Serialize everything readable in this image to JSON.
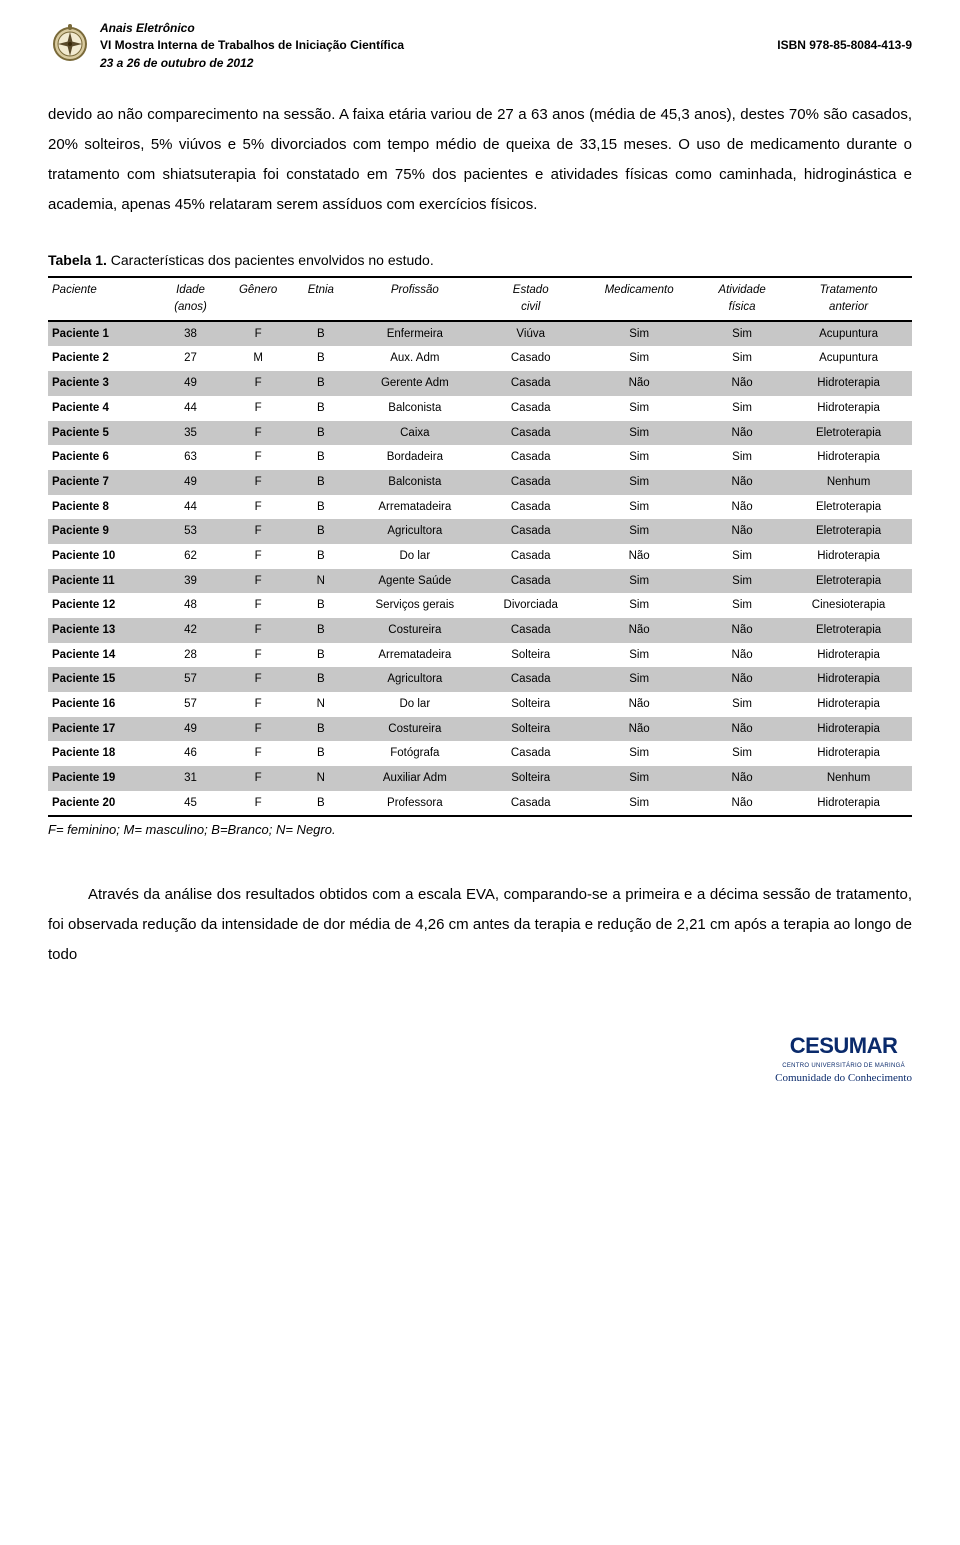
{
  "header": {
    "title_line1": "Anais Eletrônico",
    "title_line2": "VI Mostra Interna de Trabalhos de Iniciação Científica",
    "date_line": "23 a 26 de outubro de 2012",
    "isbn": "ISBN 978-85-8084-413-9"
  },
  "body": {
    "paragraph1": "devido ao não comparecimento na sessão. A faixa etária variou de 27 a 63 anos (média de 45,3 anos), destes 70% são casados, 20% solteiros, 5% viúvos e 5% divorciados com tempo médio de queixa de 33,15 meses. O uso de medicamento durante o tratamento com shiatsuterapia foi constatado em 75% dos pacientes e atividades físicas como caminhada, hidroginástica e academia, apenas 45% relataram serem assíduos com exercícios físicos.",
    "table_label": "Tabela 1.",
    "table_caption": " Características dos pacientes envolvidos no estudo.",
    "table_legend": "F= feminino; M= masculino; B=Branco; N= Negro.",
    "paragraph2": "Através da análise dos resultados obtidos com a escala EVA, comparando-se a primeira e a décima sessão de tratamento, foi observada redução da intensidade de dor média de 4,26 cm antes da terapia e redução de 2,21 cm após a terapia ao longo de todo"
  },
  "table": {
    "type": "table",
    "row_odd_bg": "#c7c7c7",
    "row_even_bg": "#ffffff",
    "border_color": "#000000",
    "header_font_style": "italic",
    "columns": [
      {
        "key": "paciente",
        "label": "Paciente",
        "align": "left"
      },
      {
        "key": "idade",
        "label": "Idade (anos)",
        "align": "center"
      },
      {
        "key": "genero",
        "label": "Gênero",
        "align": "center"
      },
      {
        "key": "etnia",
        "label": "Etnia",
        "align": "center"
      },
      {
        "key": "profissao",
        "label": "Profissão",
        "align": "center"
      },
      {
        "key": "estado",
        "label": "Estado civil",
        "align": "center"
      },
      {
        "key": "medicamento",
        "label": "Medicamento",
        "align": "center"
      },
      {
        "key": "atividade",
        "label": "Atividade física",
        "align": "center"
      },
      {
        "key": "tratamento",
        "label": "Tratamento anterior",
        "align": "center"
      }
    ],
    "rows": [
      {
        "paciente": "Paciente 1",
        "idade": "38",
        "genero": "F",
        "etnia": "B",
        "profissao": "Enfermeira",
        "estado": "Viúva",
        "medicamento": "Sim",
        "atividade": "Sim",
        "tratamento": "Acupuntura"
      },
      {
        "paciente": "Paciente 2",
        "idade": "27",
        "genero": "M",
        "etnia": "B",
        "profissao": "Aux. Adm",
        "estado": "Casado",
        "medicamento": "Sim",
        "atividade": "Sim",
        "tratamento": "Acupuntura"
      },
      {
        "paciente": "Paciente 3",
        "idade": "49",
        "genero": "F",
        "etnia": "B",
        "profissao": "Gerente Adm",
        "estado": "Casada",
        "medicamento": "Não",
        "atividade": "Não",
        "tratamento": "Hidroterapia"
      },
      {
        "paciente": "Paciente 4",
        "idade": "44",
        "genero": "F",
        "etnia": "B",
        "profissao": "Balconista",
        "estado": "Casada",
        "medicamento": "Sim",
        "atividade": "Sim",
        "tratamento": "Hidroterapia"
      },
      {
        "paciente": "Paciente 5",
        "idade": "35",
        "genero": "F",
        "etnia": "B",
        "profissao": "Caixa",
        "estado": "Casada",
        "medicamento": "Sim",
        "atividade": "Não",
        "tratamento": "Eletroterapia"
      },
      {
        "paciente": "Paciente 6",
        "idade": "63",
        "genero": "F",
        "etnia": "B",
        "profissao": "Bordadeira",
        "estado": "Casada",
        "medicamento": "Sim",
        "atividade": "Sim",
        "tratamento": "Hidroterapia"
      },
      {
        "paciente": "Paciente 7",
        "idade": "49",
        "genero": "F",
        "etnia": "B",
        "profissao": "Balconista",
        "estado": "Casada",
        "medicamento": "Sim",
        "atividade": "Não",
        "tratamento": "Nenhum"
      },
      {
        "paciente": "Paciente 8",
        "idade": "44",
        "genero": "F",
        "etnia": "B",
        "profissao": "Arrematadeira",
        "estado": "Casada",
        "medicamento": "Sim",
        "atividade": "Não",
        "tratamento": "Eletroterapia"
      },
      {
        "paciente": "Paciente 9",
        "idade": "53",
        "genero": "F",
        "etnia": "B",
        "profissao": "Agricultora",
        "estado": "Casada",
        "medicamento": "Sim",
        "atividade": "Não",
        "tratamento": "Eletroterapia"
      },
      {
        "paciente": "Paciente 10",
        "idade": "62",
        "genero": "F",
        "etnia": "B",
        "profissao": "Do lar",
        "estado": "Casada",
        "medicamento": "Não",
        "atividade": "Sim",
        "tratamento": "Hidroterapia"
      },
      {
        "paciente": "Paciente 11",
        "idade": "39",
        "genero": "F",
        "etnia": "N",
        "profissao": "Agente Saúde",
        "estado": "Casada",
        "medicamento": "Sim",
        "atividade": "Sim",
        "tratamento": "Eletroterapia"
      },
      {
        "paciente": "Paciente 12",
        "idade": "48",
        "genero": "F",
        "etnia": "B",
        "profissao": "Serviços gerais",
        "estado": "Divorciada",
        "medicamento": "Sim",
        "atividade": "Sim",
        "tratamento": "Cinesioterapia"
      },
      {
        "paciente": "Paciente 13",
        "idade": "42",
        "genero": "F",
        "etnia": "B",
        "profissao": "Costureira",
        "estado": "Casada",
        "medicamento": "Não",
        "atividade": "Não",
        "tratamento": "Eletroterapia"
      },
      {
        "paciente": "Paciente 14",
        "idade": "28",
        "genero": "F",
        "etnia": "B",
        "profissao": "Arrematadeira",
        "estado": "Solteira",
        "medicamento": "Sim",
        "atividade": "Não",
        "tratamento": "Hidroterapia"
      },
      {
        "paciente": "Paciente 15",
        "idade": "57",
        "genero": "F",
        "etnia": "B",
        "profissao": "Agricultora",
        "estado": "Casada",
        "medicamento": "Sim",
        "atividade": "Não",
        "tratamento": "Hidroterapia"
      },
      {
        "paciente": "Paciente 16",
        "idade": "57",
        "genero": "F",
        "etnia": "N",
        "profissao": "Do lar",
        "estado": "Solteira",
        "medicamento": "Não",
        "atividade": "Sim",
        "tratamento": "Hidroterapia"
      },
      {
        "paciente": "Paciente 17",
        "idade": "49",
        "genero": "F",
        "etnia": "B",
        "profissao": "Costureira",
        "estado": "Solteira",
        "medicamento": "Não",
        "atividade": "Não",
        "tratamento": "Hidroterapia"
      },
      {
        "paciente": "Paciente 18",
        "idade": "46",
        "genero": "F",
        "etnia": "B",
        "profissao": "Fotógrafa",
        "estado": "Casada",
        "medicamento": "Sim",
        "atividade": "Sim",
        "tratamento": "Hidroterapia"
      },
      {
        "paciente": "Paciente 19",
        "idade": "31",
        "genero": "F",
        "etnia": "N",
        "profissao": "Auxiliar Adm",
        "estado": "Solteira",
        "medicamento": "Sim",
        "atividade": "Não",
        "tratamento": "Nenhum"
      },
      {
        "paciente": "Paciente 20",
        "idade": "45",
        "genero": "F",
        "etnia": "B",
        "profissao": "Professora",
        "estado": "Casada",
        "medicamento": "Sim",
        "atividade": "Não",
        "tratamento": "Hidroterapia"
      }
    ]
  },
  "footer": {
    "logo_main": "CESUMAR",
    "logo_sub": "CENTRO UNIVERSITÁRIO DE MARINGÁ",
    "logo_motto": "Comunidade do Conhecimento",
    "logo_color": "#0a2a6b"
  }
}
